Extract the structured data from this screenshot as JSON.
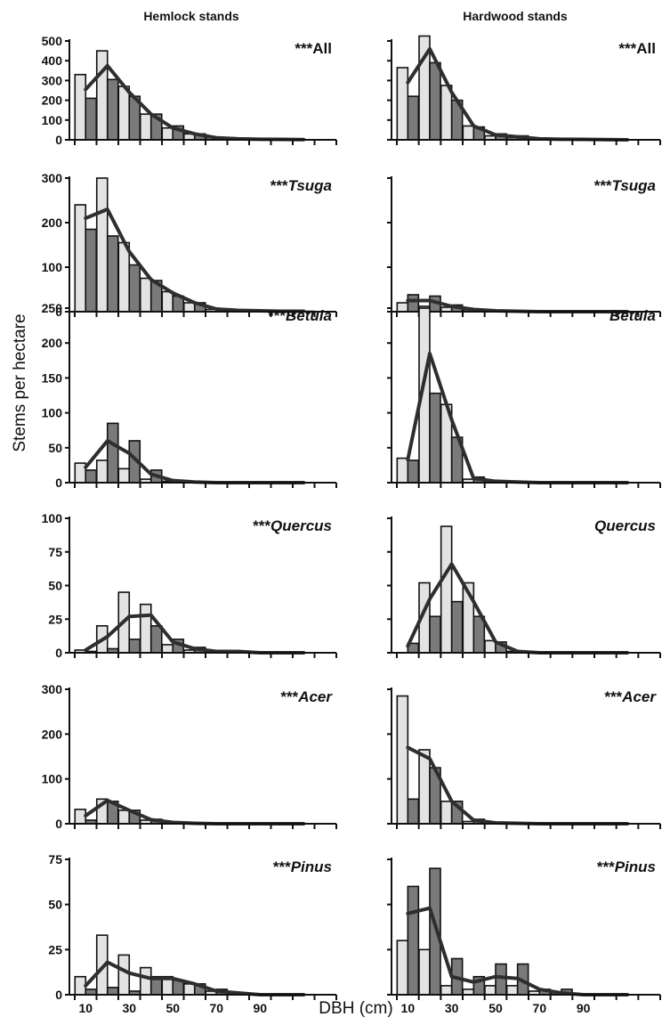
{
  "figure": {
    "column_titles": [
      "Hemlock stands",
      "Hardwood stands"
    ],
    "ylabel": "Stems per hectare",
    "xlabel": "DBH (cm)",
    "x_tick_labels": [
      "10",
      "30",
      "50",
      "70",
      "90"
    ]
  },
  "colors": {
    "light_bar": "#e3e3e3",
    "dark_bar": "#7a7a7a",
    "line": "#2e2e2e",
    "stroke": "#111111"
  },
  "chart_data": [
    {
      "type": "bar",
      "column": "Hemlock stands",
      "label_prefix": "***",
      "label_name": "All",
      "italic": false,
      "x": [
        10,
        20,
        30,
        40,
        50,
        60,
        70,
        80,
        90,
        100,
        110
      ],
      "ylim": [
        0,
        500
      ],
      "yticks": [
        0,
        100,
        200,
        300,
        400,
        500
      ],
      "series": [
        {
          "values": [
            330,
            450,
            270,
            130,
            60,
            30,
            10,
            5,
            3,
            2,
            1
          ]
        },
        {
          "values": [
            210,
            305,
            220,
            130,
            70,
            30,
            10,
            5,
            3,
            2,
            1
          ]
        },
        {
          "values": [
            255,
            375,
            240,
            130,
            60,
            30,
            10,
            5,
            3,
            2,
            1
          ]
        }
      ]
    },
    {
      "type": "bar",
      "column": "Hardwood stands",
      "label_prefix": "***",
      "label_name": "All",
      "italic": false,
      "x": [
        10,
        20,
        30,
        40,
        50,
        60,
        70,
        80,
        90,
        100,
        110
      ],
      "ylim": [
        0,
        500
      ],
      "yticks": [
        0,
        100,
        200,
        300,
        400,
        500
      ],
      "series": [
        {
          "values": [
            365,
            525,
            275,
            70,
            20,
            10,
            5,
            3,
            2,
            1,
            0
          ]
        },
        {
          "values": [
            220,
            390,
            200,
            65,
            30,
            20,
            5,
            3,
            2,
            1,
            0
          ]
        },
        {
          "values": [
            290,
            460,
            240,
            70,
            25,
            15,
            5,
            3,
            2,
            1,
            0
          ]
        }
      ]
    },
    {
      "type": "bar",
      "column": "Hemlock stands",
      "label_prefix": "***",
      "label_name": "Tsuga",
      "italic": true,
      "x": [
        10,
        20,
        30,
        40,
        50,
        60,
        70,
        80,
        90,
        100,
        110
      ],
      "ylim": [
        0,
        300
      ],
      "yticks": [
        0,
        100,
        200,
        300
      ],
      "series": [
        {
          "values": [
            240,
            300,
            155,
            75,
            45,
            20,
            5,
            3,
            2,
            1,
            1
          ]
        },
        {
          "values": [
            185,
            170,
            105,
            70,
            35,
            20,
            5,
            3,
            2,
            1,
            1
          ]
        },
        {
          "values": [
            210,
            230,
            135,
            72,
            42,
            20,
            6,
            3,
            2,
            1,
            1
          ]
        }
      ]
    },
    {
      "type": "bar",
      "column": "Hardwood stands",
      "label_prefix": "***",
      "label_name": "Tsuga",
      "italic": true,
      "x": [
        10,
        20,
        30,
        40,
        50,
        60,
        70,
        80,
        90,
        100,
        110
      ],
      "ylim": [
        0,
        300
      ],
      "yticks": [
        0,
        100,
        200,
        300
      ],
      "series": [
        {
          "values": [
            20,
            12,
            10,
            4,
            2,
            1,
            0,
            0,
            0,
            0,
            0
          ]
        },
        {
          "values": [
            38,
            35,
            15,
            5,
            2,
            1,
            0,
            0,
            0,
            0,
            0
          ]
        },
        {
          "values": [
            25,
            25,
            12,
            5,
            2,
            1,
            0,
            0,
            0,
            0,
            0
          ]
        }
      ]
    },
    {
      "type": "bar",
      "column": "Hemlock stands",
      "label_prefix": "***",
      "label_name": "Betula",
      "italic": true,
      "x": [
        10,
        20,
        30,
        40,
        50,
        60,
        70,
        80,
        90,
        100,
        110
      ],
      "ylim": [
        0,
        250
      ],
      "yticks": [
        0,
        50,
        100,
        150,
        200,
        250
      ],
      "series": [
        {
          "values": [
            28,
            32,
            20,
            5,
            2,
            1,
            0,
            0,
            0,
            0,
            0
          ]
        },
        {
          "values": [
            18,
            85,
            60,
            18,
            3,
            1,
            0,
            0,
            0,
            0,
            0
          ]
        },
        {
          "values": [
            22,
            60,
            42,
            12,
            3,
            1,
            0,
            0,
            0,
            0,
            0
          ]
        }
      ]
    },
    {
      "type": "bar",
      "column": "Hardwood stands",
      "label_prefix": "",
      "label_name": "Betula",
      "italic": true,
      "x": [
        10,
        20,
        30,
        40,
        50,
        60,
        70,
        80,
        90,
        100,
        110
      ],
      "ylim": [
        0,
        250
      ],
      "yticks": [
        0,
        50,
        100,
        150,
        200,
        250
      ],
      "series": [
        {
          "values": [
            35,
            250,
            112,
            5,
            2,
            1,
            0,
            0,
            0,
            0,
            0
          ]
        },
        {
          "values": [
            32,
            128,
            65,
            8,
            2,
            1,
            0,
            0,
            0,
            0,
            0
          ]
        },
        {
          "values": [
            33,
            185,
            90,
            6,
            2,
            1,
            0,
            0,
            0,
            0,
            0
          ]
        }
      ]
    },
    {
      "type": "bar",
      "column": "Hemlock stands",
      "label_prefix": "***",
      "label_name": "Quercus",
      "italic": true,
      "x": [
        10,
        20,
        30,
        40,
        50,
        60,
        70,
        80,
        90,
        100,
        110
      ],
      "ylim": [
        0,
        100
      ],
      "yticks": [
        0,
        25,
        50,
        75,
        100
      ],
      "series": [
        {
          "values": [
            2,
            20,
            45,
            36,
            6,
            2,
            1,
            1,
            0,
            0,
            0
          ]
        },
        {
          "values": [
            1,
            3,
            10,
            20,
            10,
            4,
            1,
            0,
            0,
            0,
            0
          ]
        },
        {
          "values": [
            2,
            12,
            27,
            28,
            8,
            3,
            1,
            1,
            0,
            0,
            0
          ]
        }
      ]
    },
    {
      "type": "bar",
      "column": "Hardwood stands",
      "label_prefix": "",
      "label_name": "Quercus",
      "italic": true,
      "x": [
        10,
        20,
        30,
        40,
        50,
        60,
        70,
        80,
        90,
        100,
        110
      ],
      "ylim": [
        0,
        100
      ],
      "yticks": [
        0,
        25,
        50,
        75,
        100
      ],
      "series": [
        {
          "values": [
            0,
            52,
            94,
            52,
            9,
            1,
            0,
            0,
            0,
            0,
            0
          ]
        },
        {
          "values": [
            7,
            27,
            38,
            27,
            8,
            1,
            0,
            0,
            0,
            0,
            0
          ]
        },
        {
          "values": [
            5,
            40,
            66,
            38,
            8,
            1,
            0,
            0,
            0,
            0,
            0
          ]
        }
      ]
    },
    {
      "type": "bar",
      "column": "Hemlock stands",
      "label_prefix": "***",
      "label_name": "Acer",
      "italic": true,
      "x": [
        10,
        20,
        30,
        40,
        50,
        60,
        70,
        80,
        90,
        100,
        110
      ],
      "ylim": [
        0,
        300
      ],
      "yticks": [
        0,
        100,
        200,
        300
      ],
      "series": [
        {
          "values": [
            32,
            55,
            30,
            8,
            2,
            1,
            0,
            0,
            0,
            0,
            0
          ]
        },
        {
          "values": [
            8,
            50,
            30,
            10,
            3,
            1,
            0,
            0,
            0,
            0,
            0
          ]
        },
        {
          "values": [
            18,
            52,
            30,
            9,
            3,
            1,
            0,
            0,
            0,
            0,
            0
          ]
        }
      ]
    },
    {
      "type": "bar",
      "column": "Hardwood stands",
      "label_prefix": "***",
      "label_name": "Acer",
      "italic": true,
      "x": [
        10,
        20,
        30,
        40,
        50,
        60,
        70,
        80,
        90,
        100,
        110
      ],
      "ylim": [
        0,
        300
      ],
      "yticks": [
        0,
        100,
        200,
        300
      ],
      "series": [
        {
          "values": [
            285,
            165,
            50,
            5,
            2,
            1,
            0,
            0,
            0,
            0,
            0
          ]
        },
        {
          "values": [
            55,
            125,
            50,
            10,
            2,
            1,
            0,
            0,
            0,
            0,
            0
          ]
        },
        {
          "values": [
            170,
            145,
            50,
            8,
            2,
            1,
            0,
            0,
            0,
            0,
            0
          ]
        }
      ]
    },
    {
      "type": "bar",
      "column": "Hemlock stands",
      "label_prefix": "***",
      "label_name": "Pinus",
      "italic": true,
      "x": [
        10,
        20,
        30,
        40,
        50,
        60,
        70,
        80,
        90,
        100,
        110
      ],
      "ylim": [
        0,
        75
      ],
      "yticks": [
        0,
        25,
        50,
        75
      ],
      "series": [
        {
          "values": [
            10,
            33,
            22,
            15,
            10,
            6,
            2,
            1,
            0,
            0,
            0
          ]
        },
        {
          "values": [
            3,
            4,
            2,
            10,
            8,
            6,
            3,
            1,
            0,
            0,
            0
          ]
        },
        {
          "values": [
            5,
            18,
            12,
            9,
            9,
            6,
            2,
            1,
            0,
            0,
            0
          ]
        }
      ]
    },
    {
      "type": "bar",
      "column": "Hardwood stands",
      "label_prefix": "***",
      "label_name": "Pinus",
      "italic": true,
      "x": [
        10,
        20,
        30,
        40,
        50,
        60,
        70,
        80,
        90,
        100,
        110
      ],
      "ylim": [
        0,
        75
      ],
      "yticks": [
        0,
        25,
        50,
        75
      ],
      "series": [
        {
          "values": [
            30,
            25,
            5,
            3,
            5,
            5,
            2,
            1,
            0,
            0,
            0
          ]
        },
        {
          "values": [
            60,
            70,
            20,
            10,
            17,
            17,
            3,
            3,
            0,
            0,
            0
          ]
        },
        {
          "values": [
            45,
            48,
            10,
            7,
            10,
            9,
            3,
            1,
            0,
            0,
            0
          ]
        }
      ]
    }
  ]
}
